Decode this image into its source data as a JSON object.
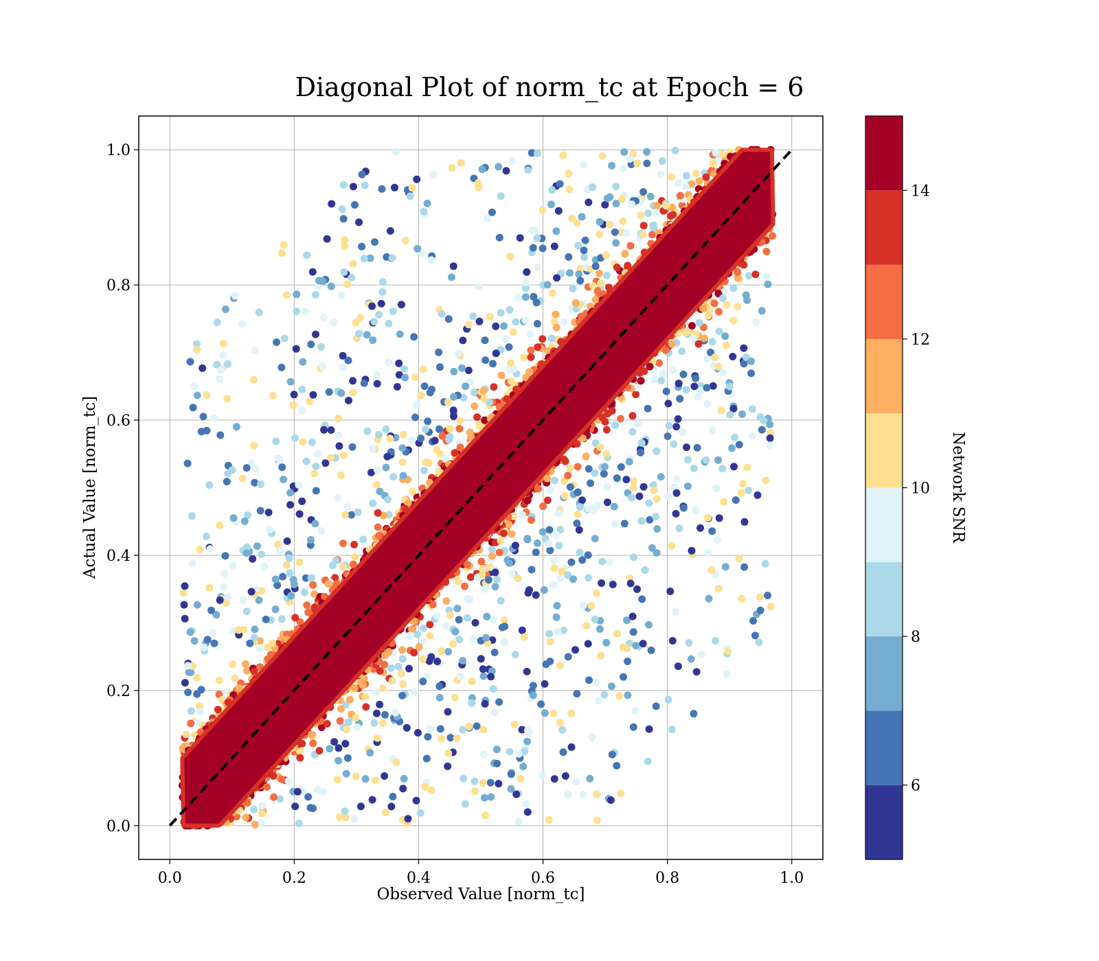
{
  "chart_data": {
    "type": "scatter",
    "title": "Diagonal Plot of norm_tc at Epoch = 6",
    "xlabel": "Observed Value [norm_tc]",
    "ylabel": "Actual Value [norm_tc]",
    "xlim": [
      -0.05,
      1.05
    ],
    "ylim": [
      -0.05,
      1.05
    ],
    "xticks": [
      "0.0",
      "0.2",
      "0.4",
      "0.6",
      "0.8",
      "1.0"
    ],
    "yticks": [
      "0.0",
      "0.2",
      "0.4",
      "0.6",
      "0.8",
      "1.0"
    ],
    "grid": true,
    "reference_line": {
      "x": [
        0.0,
        1.0
      ],
      "y": [
        0.0,
        1.0
      ],
      "style": "dashed",
      "color": "#000000"
    },
    "scatter": {
      "marker": "circle",
      "core_band": {
        "x_start": 0.02,
        "x_end": 0.97,
        "y_offset_range": [
          -0.08,
          0.08
        ],
        "color_value": 15
      },
      "spread_description_clusters": [
        {
          "x_center": 0.45,
          "y_center": 0.75,
          "snr_range": [
            5,
            11
          ]
        },
        {
          "x_center": 0.55,
          "y_center": 0.2,
          "snr_range": [
            5,
            11
          ]
        }
      ]
    },
    "colorbar": {
      "label": "Network SNR",
      "range": [
        5,
        15
      ],
      "ticks": [
        "6",
        "8",
        "10",
        "12",
        "14"
      ],
      "tick_values": [
        6,
        8,
        10,
        12,
        14
      ],
      "levels": [
        5,
        6,
        7,
        8,
        9,
        10,
        11,
        12,
        13,
        14,
        15
      ],
      "colors": [
        "#313695",
        "#4575b4",
        "#74add1",
        "#abd9e9",
        "#e0f3f8",
        "#fee090",
        "#fdae61",
        "#f46d43",
        "#d73027",
        "#a50026"
      ]
    }
  }
}
